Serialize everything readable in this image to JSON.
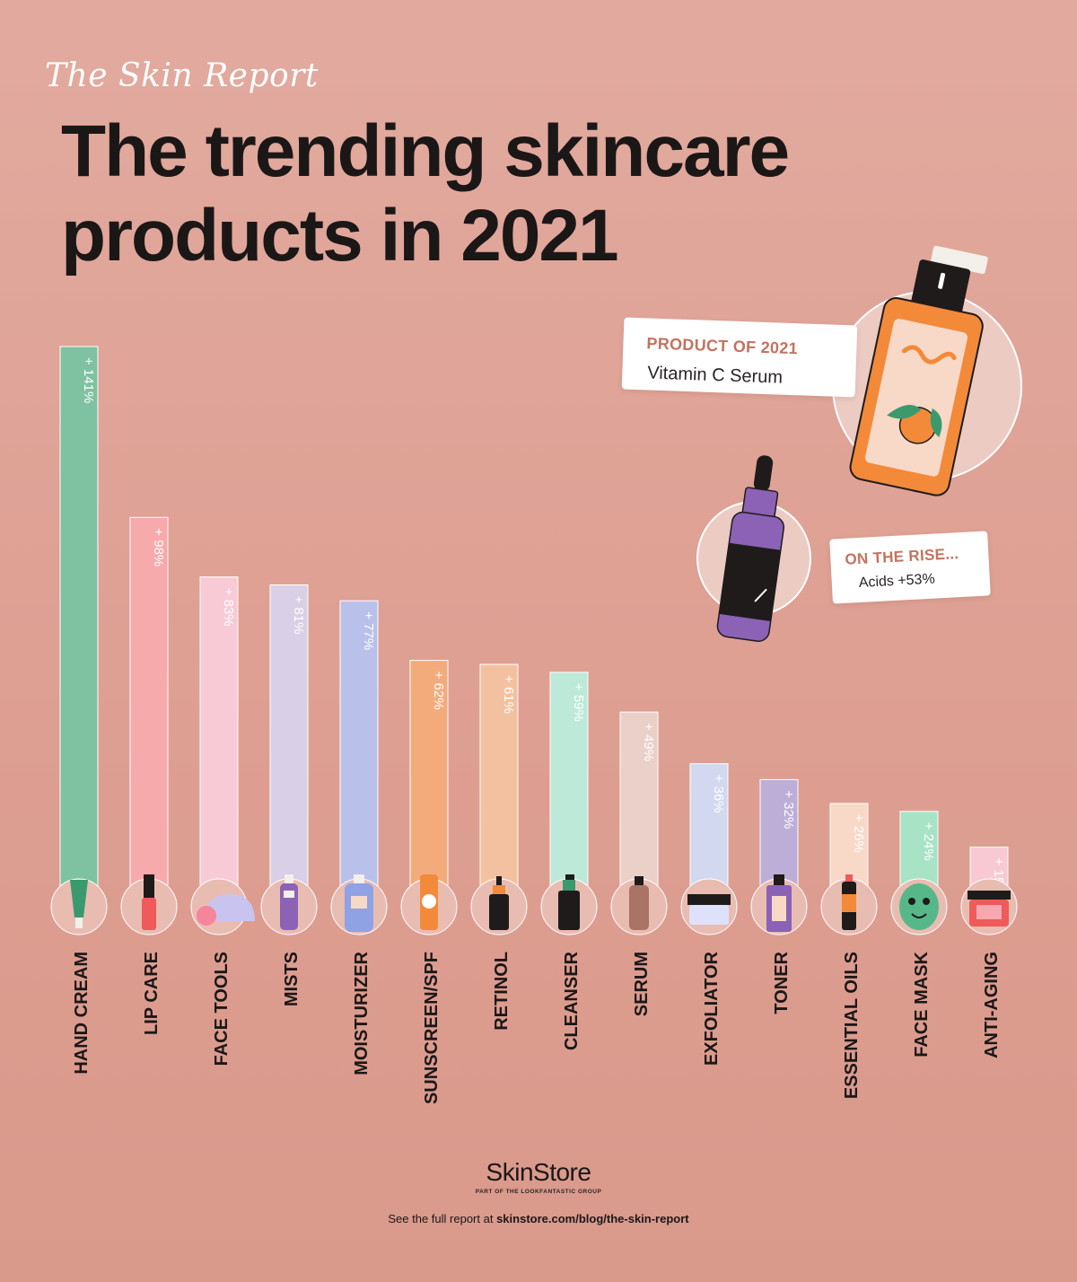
{
  "header": {
    "kicker": "The Skin Report",
    "title_line1": "The trending skincare",
    "title_line2": "products in 2021"
  },
  "callouts": {
    "product": {
      "kicker": "PRODUCT OF 2021",
      "text": "Vitamin C Serum"
    },
    "rise": {
      "kicker": "ON THE RISE...",
      "text": "Acids +53%"
    }
  },
  "brand": {
    "name": "SkinStore",
    "tagline": "PART OF THE LOOKFANTASTIC GROUP"
  },
  "footer": {
    "prefix": "See the full report at",
    "link": "skinstore.com/blog/the-skin-report"
  },
  "colors": {
    "background": "#e0a497",
    "text": "#1b1717",
    "accent": "#c3735f"
  },
  "chart_data": {
    "type": "bar",
    "title": "The trending skincare products in 2021",
    "xlabel": "",
    "ylabel": "",
    "ylim": [
      0,
      141
    ],
    "grid": false,
    "legend": "none",
    "categories": [
      "HAND CREAM",
      "LIP CARE",
      "FACE TOOLS",
      "MISTS",
      "MOISTURIZER",
      "SUNSCREEN/SPF",
      "RETINOL",
      "CLEANSER",
      "SERUM",
      "EXFOLIATOR",
      "TONER",
      "ESSENTIAL OILS",
      "FACE MASK",
      "ANTI-AGING"
    ],
    "values": [
      141,
      98,
      83,
      81,
      77,
      62,
      61,
      59,
      49,
      36,
      32,
      26,
      24,
      15
    ],
    "value_labels": [
      "+ 141%",
      "+ 98%",
      "+ 83%",
      "+ 81%",
      "+ 77%",
      "+ 62%",
      "+ 61%",
      "+ 59%",
      "+ 49%",
      "+ 36%",
      "+ 32%",
      "+ 26%",
      "+ 24%",
      "+ 15%"
    ],
    "bar_colors": [
      "#7fc2a1",
      "#f6aaac",
      "#f8cad5",
      "#d9cfe6",
      "#b9c1ea",
      "#f4ab7c",
      "#f4c1a0",
      "#bde9d8",
      "#ebcfc9",
      "#d3d8f1",
      "#bdaed7",
      "#f8d8c6",
      "#a8e3c6",
      "#f8c9d3"
    ],
    "icons": [
      "hand-cream-tube-icon",
      "lip-gloss-icon",
      "face-tools-icon",
      "mist-bottle-icon",
      "moisturizer-bottle-icon",
      "sunscreen-tube-icon",
      "retinol-dropper-icon",
      "cleanser-pump-icon",
      "serum-bottle-icon",
      "exfoliator-jar-icon",
      "toner-bottle-icon",
      "essential-oil-icon",
      "face-mask-icon",
      "anti-aging-jar-icon"
    ]
  }
}
